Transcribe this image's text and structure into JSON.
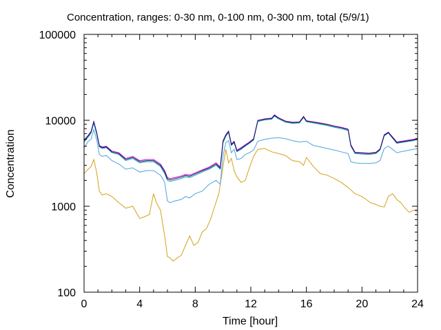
{
  "chart_data": {
    "type": "line",
    "title": "Concentration, ranges: 0-30 nm, 0-100 nm, 0-300 nm, total (5/9/1)",
    "xlabel": "Time [hour]",
    "ylabel": "Concentration",
    "xlim": [
      0,
      24
    ],
    "ylim": [
      100,
      100000
    ],
    "yscale": "log",
    "grid": false,
    "legend": "none",
    "x_ticks": [
      {
        "value": 0,
        "label": "0"
      },
      {
        "value": 4,
        "label": "4"
      },
      {
        "value": 8,
        "label": "8"
      },
      {
        "value": 12,
        "label": "12"
      },
      {
        "value": 16,
        "label": "16"
      },
      {
        "value": 20,
        "label": "20"
      },
      {
        "value": 24,
        "label": "24"
      }
    ],
    "y_ticks": [
      {
        "value": 100,
        "label": "100"
      },
      {
        "value": 1000,
        "label": "1000"
      },
      {
        "value": 10000,
        "label": "10000"
      },
      {
        "value": 100000,
        "label": "100000"
      }
    ],
    "series": [
      {
        "color": "#d4a017",
        "x": [
          0,
          0.3,
          0.5,
          0.7,
          0.9,
          1.1,
          1.3,
          1.6,
          2,
          2.5,
          3,
          3.5,
          4,
          4.3,
          4.7,
          5,
          5.2,
          5.5,
          5.8,
          6,
          6.2,
          6.4,
          6.7,
          7,
          7.3,
          7.6,
          7.9,
          8.2,
          8.5,
          8.8,
          9.1,
          9.4,
          9.7,
          10,
          10.2,
          10.4,
          10.6,
          10.8,
          11,
          11.3,
          11.6,
          11.9,
          12.2,
          12.5,
          13,
          13.5,
          14,
          14.5,
          15,
          15.5,
          15.8,
          16,
          16.5,
          17,
          17.5,
          18,
          18.5,
          19,
          19.5,
          20,
          20.3,
          20.6,
          21,
          21.3,
          21.6,
          21.9,
          22.2,
          22.5,
          22.8,
          23.1,
          23.4,
          23.7,
          24
        ],
        "y": [
          2400,
          2700,
          2900,
          3500,
          2500,
          1500,
          1350,
          1400,
          1300,
          1100,
          950,
          1000,
          720,
          750,
          800,
          1400,
          1100,
          900,
          450,
          260,
          250,
          230,
          250,
          270,
          350,
          450,
          350,
          380,
          500,
          550,
          700,
          1000,
          1400,
          2900,
          4600,
          3200,
          3600,
          2600,
          2200,
          1900,
          2000,
          2800,
          3800,
          4600,
          4700,
          4300,
          4100,
          3900,
          3400,
          3300,
          3000,
          3700,
          2900,
          2400,
          2300,
          2100,
          1900,
          1650,
          1400,
          1300,
          1200,
          1100,
          1050,
          1000,
          980,
          1300,
          1400,
          1200,
          1100,
          950,
          850,
          900,
          870
        ]
      },
      {
        "color": "#4aa3df",
        "x": [
          0,
          0.3,
          0.5,
          0.7,
          0.9,
          1.1,
          1.3,
          1.6,
          2,
          2.5,
          3,
          3.5,
          4,
          4.5,
          5,
          5.5,
          5.8,
          6,
          6.2,
          6.5,
          7,
          7.3,
          7.6,
          8,
          8.5,
          9,
          9.5,
          9.8,
          10,
          10.2,
          10.4,
          10.6,
          10.8,
          11,
          11.3,
          11.6,
          11.9,
          12.2,
          12.5,
          13,
          13.5,
          14,
          14.5,
          15,
          15.5,
          16,
          16.5,
          17,
          17.5,
          18,
          18.5,
          19,
          19.2,
          19.5,
          20,
          20.5,
          21,
          21.3,
          21.6,
          21.9,
          22.2,
          22.5,
          22.8,
          23.1,
          23.4,
          23.7,
          24
        ],
        "y": [
          4800,
          5700,
          6000,
          7800,
          6000,
          4000,
          3800,
          3900,
          3400,
          3100,
          2700,
          2800,
          2500,
          2600,
          2600,
          2300,
          1900,
          1150,
          1100,
          1150,
          1200,
          1300,
          1250,
          1400,
          1500,
          1800,
          2000,
          1800,
          3900,
          5500,
          5800,
          4200,
          4600,
          3500,
          3600,
          4000,
          4200,
          4500,
          5700,
          6000,
          6200,
          6300,
          6100,
          5800,
          5600,
          5700,
          5100,
          4900,
          4700,
          4500,
          4300,
          4100,
          3300,
          3200,
          3150,
          3150,
          3200,
          3400,
          4700,
          5000,
          4600,
          4200,
          4300,
          4400,
          4500,
          4600,
          4700
        ]
      },
      {
        "color": "#0aa6a6",
        "x": [
          0,
          0.3,
          0.5,
          0.7,
          0.9,
          1.1,
          1.3,
          1.6,
          2,
          2.5,
          3,
          3.5,
          4,
          4.5,
          5,
          5.5,
          5.8,
          6,
          6.2,
          6.5,
          7,
          7.3,
          7.6,
          8,
          8.5,
          9,
          9.5,
          9.8,
          10,
          10.2,
          10.4,
          10.6,
          10.8,
          11,
          11.3,
          11.6,
          11.9,
          12.2,
          12.5,
          13,
          13.5,
          13.7,
          14,
          14.5,
          15,
          15.5,
          15.8,
          16,
          16.5,
          17,
          17.5,
          18,
          18.5,
          19,
          19.2,
          19.5,
          20,
          20.5,
          21,
          21.3,
          21.6,
          21.9,
          22.2,
          22.5,
          22.8,
          23.1,
          23.4,
          23.7,
          24
        ],
        "y": [
          5600,
          6400,
          7100,
          9300,
          7000,
          4900,
          4700,
          4800,
          4200,
          4000,
          3400,
          3600,
          3200,
          3300,
          3300,
          2900,
          2400,
          2000,
          1950,
          2000,
          2100,
          2200,
          2150,
          2300,
          2500,
          2700,
          3000,
          2700,
          5500,
          6500,
          7200,
          5100,
          5500,
          4300,
          4600,
          5000,
          5400,
          5900,
          9700,
          10100,
          10300,
          11200,
          10400,
          9500,
          9200,
          9300,
          10800,
          9600,
          9300,
          9000,
          8700,
          8300,
          8000,
          7600,
          5000,
          4100,
          4050,
          4000,
          4100,
          4500,
          6600,
          7100,
          6200,
          5400,
          5500,
          5600,
          5700,
          5800,
          6000
        ]
      },
      {
        "color": "#c800c8",
        "x": [
          0,
          0.3,
          0.5,
          0.7,
          0.9,
          1.1,
          1.3,
          1.6,
          2,
          2.5,
          3,
          3.5,
          4,
          4.5,
          5,
          5.5,
          5.8,
          6,
          6.2,
          6.5,
          7,
          7.3,
          7.6,
          8,
          8.5,
          9,
          9.5,
          9.8,
          10,
          10.2,
          10.4,
          10.6,
          10.8,
          11,
          11.3,
          11.6,
          11.9,
          12.2,
          12.5,
          13,
          13.5,
          13.7,
          14,
          14.5,
          15,
          15.5,
          15.8,
          16,
          16.5,
          17,
          17.5,
          18,
          18.5,
          19,
          19.2,
          19.5,
          20,
          20.5,
          21,
          21.3,
          21.6,
          21.9,
          22.2,
          22.5,
          22.8,
          23.1,
          23.4,
          23.7,
          24
        ],
        "y": [
          5900,
          6700,
          7400,
          9700,
          7300,
          5100,
          4900,
          5000,
          4400,
          4200,
          3600,
          3800,
          3400,
          3500,
          3500,
          3100,
          2600,
          2150,
          2100,
          2150,
          2250,
          2350,
          2300,
          2450,
          2650,
          2850,
          3200,
          2850,
          5800,
          6800,
          7500,
          5300,
          5700,
          4500,
          4800,
          5200,
          5600,
          6100,
          10000,
          10400,
          10600,
          11600,
          10700,
          9800,
          9500,
          9600,
          11100,
          9900,
          9600,
          9300,
          9000,
          8600,
          8300,
          7900,
          5200,
          4250,
          4200,
          4150,
          4250,
          4650,
          6800,
          7300,
          6400,
          5600,
          5700,
          5800,
          5900,
          6000,
          6200
        ]
      },
      {
        "color": "#0b1a6b",
        "x": [
          0,
          0.3,
          0.5,
          0.7,
          0.9,
          1.1,
          1.3,
          1.6,
          2,
          2.5,
          3,
          3.5,
          4,
          4.5,
          5,
          5.5,
          5.8,
          6,
          6.2,
          6.5,
          7,
          7.3,
          7.6,
          8,
          8.5,
          9,
          9.5,
          9.8,
          10,
          10.2,
          10.4,
          10.6,
          10.8,
          11,
          11.3,
          11.6,
          11.9,
          12.2,
          12.5,
          13,
          13.5,
          13.7,
          14,
          14.5,
          15,
          15.5,
          15.8,
          16,
          16.5,
          17,
          17.5,
          18,
          18.5,
          19,
          19.2,
          19.5,
          20,
          20.5,
          21,
          21.3,
          21.6,
          21.9,
          22.2,
          22.5,
          22.8,
          23.1,
          23.4,
          23.7,
          24
        ],
        "y": [
          5800,
          6600,
          7300,
          9600,
          7200,
          5000,
          4800,
          4900,
          4300,
          4100,
          3500,
          3700,
          3300,
          3400,
          3400,
          3000,
          2500,
          2080,
          2030,
          2080,
          2180,
          2280,
          2230,
          2380,
          2580,
          2780,
          3100,
          2780,
          5700,
          6700,
          7400,
          5200,
          5600,
          4400,
          4700,
          5100,
          5500,
          6000,
          9900,
          10300,
          10500,
          11400,
          10600,
          9700,
          9400,
          9500,
          11000,
          9800,
          9500,
          9200,
          8900,
          8500,
          8200,
          7800,
          5100,
          4200,
          4150,
          4100,
          4200,
          4600,
          6700,
          7200,
          6300,
          5500,
          5600,
          5700,
          5800,
          5900,
          6100
        ]
      }
    ]
  }
}
